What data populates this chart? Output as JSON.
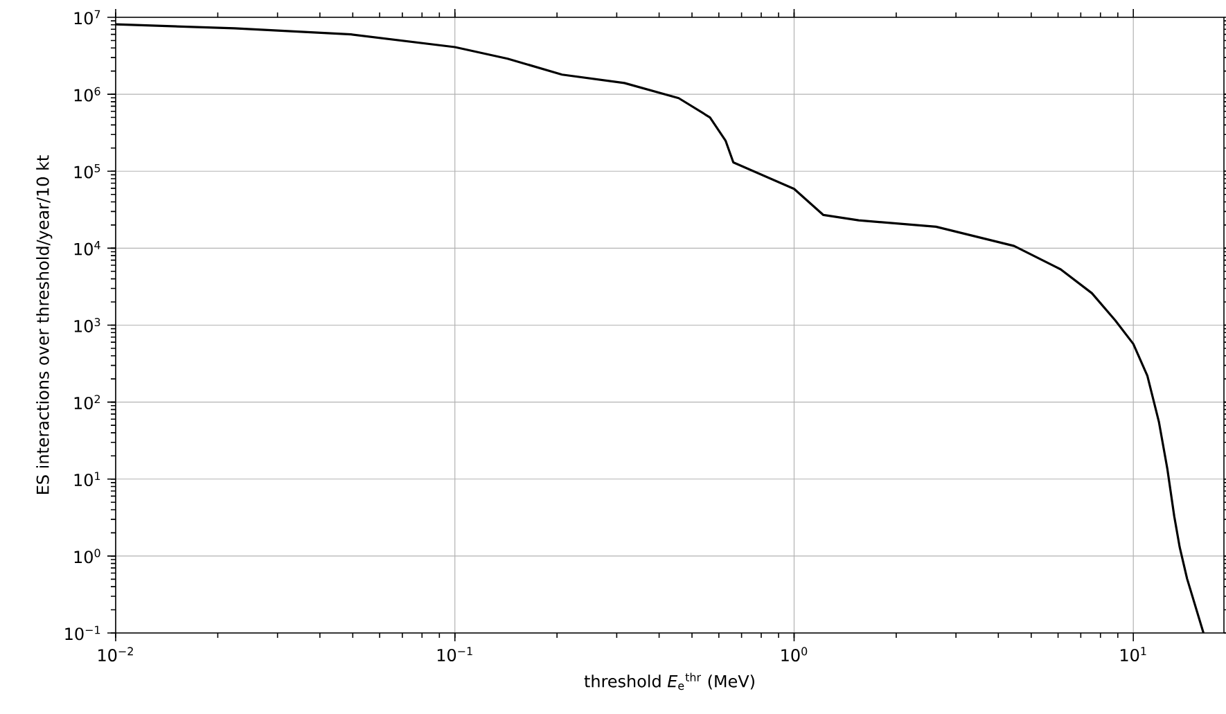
{
  "chart_data": {
    "type": "line",
    "xlabel": "threshold *E*$_{e}$$^{thr}$ (MeV)",
    "ylabel": "ES interactions over threshold/year/10 kt",
    "log": "xy",
    "grid": true,
    "xlim": [
      0.01,
      18.5
    ],
    "ylim": [
      0.1,
      10000000
    ],
    "xticks": [
      {
        "value": 0.01,
        "label": "10$^{−2}$"
      },
      {
        "value": 0.1,
        "label": "10$^{−1}$"
      },
      {
        "value": 1,
        "label": "10$^{0}$"
      },
      {
        "value": 10,
        "label": "10$^{1}$"
      }
    ],
    "yticks": [
      {
        "value": 0.1,
        "label": "10$^{−1}$"
      },
      {
        "value": 1,
        "label": "10$^{0}$"
      },
      {
        "value": 10,
        "label": "10$^{1}$"
      },
      {
        "value": 100,
        "label": "10$^{2}$"
      },
      {
        "value": 1000,
        "label": "10$^{3}$"
      },
      {
        "value": 10000,
        "label": "10$^{4}$"
      },
      {
        "value": 100000,
        "label": "10$^{5}$"
      },
      {
        "value": 1000000,
        "label": "10$^{6}$"
      },
      {
        "value": 10000000,
        "label": "10$^{7}$"
      }
    ],
    "x": [
      0.01,
      0.0224,
      0.0494,
      0.1,
      0.143,
      0.207,
      0.316,
      0.457,
      0.565,
      0.628,
      0.662,
      1.0,
      1.22,
      1.55,
      2.62,
      4.45,
      6.11,
      7.55,
      8.85,
      10.0,
      11.0,
      11.9,
      12.6,
      13.2,
      13.7,
      14.4,
      16.1
    ],
    "series": [
      {
        "color": "#000000",
        "values": [
          8100000,
          7200000,
          6000000,
          4100000,
          2900000,
          1800000,
          1400000,
          890000,
          500000,
          250000,
          130000,
          59000,
          27000,
          23000,
          19000,
          10700,
          5300,
          2600,
          1150,
          570,
          220,
          55,
          13.5,
          3.3,
          1.3,
          0.51,
          0.1
        ]
      }
    ]
  }
}
